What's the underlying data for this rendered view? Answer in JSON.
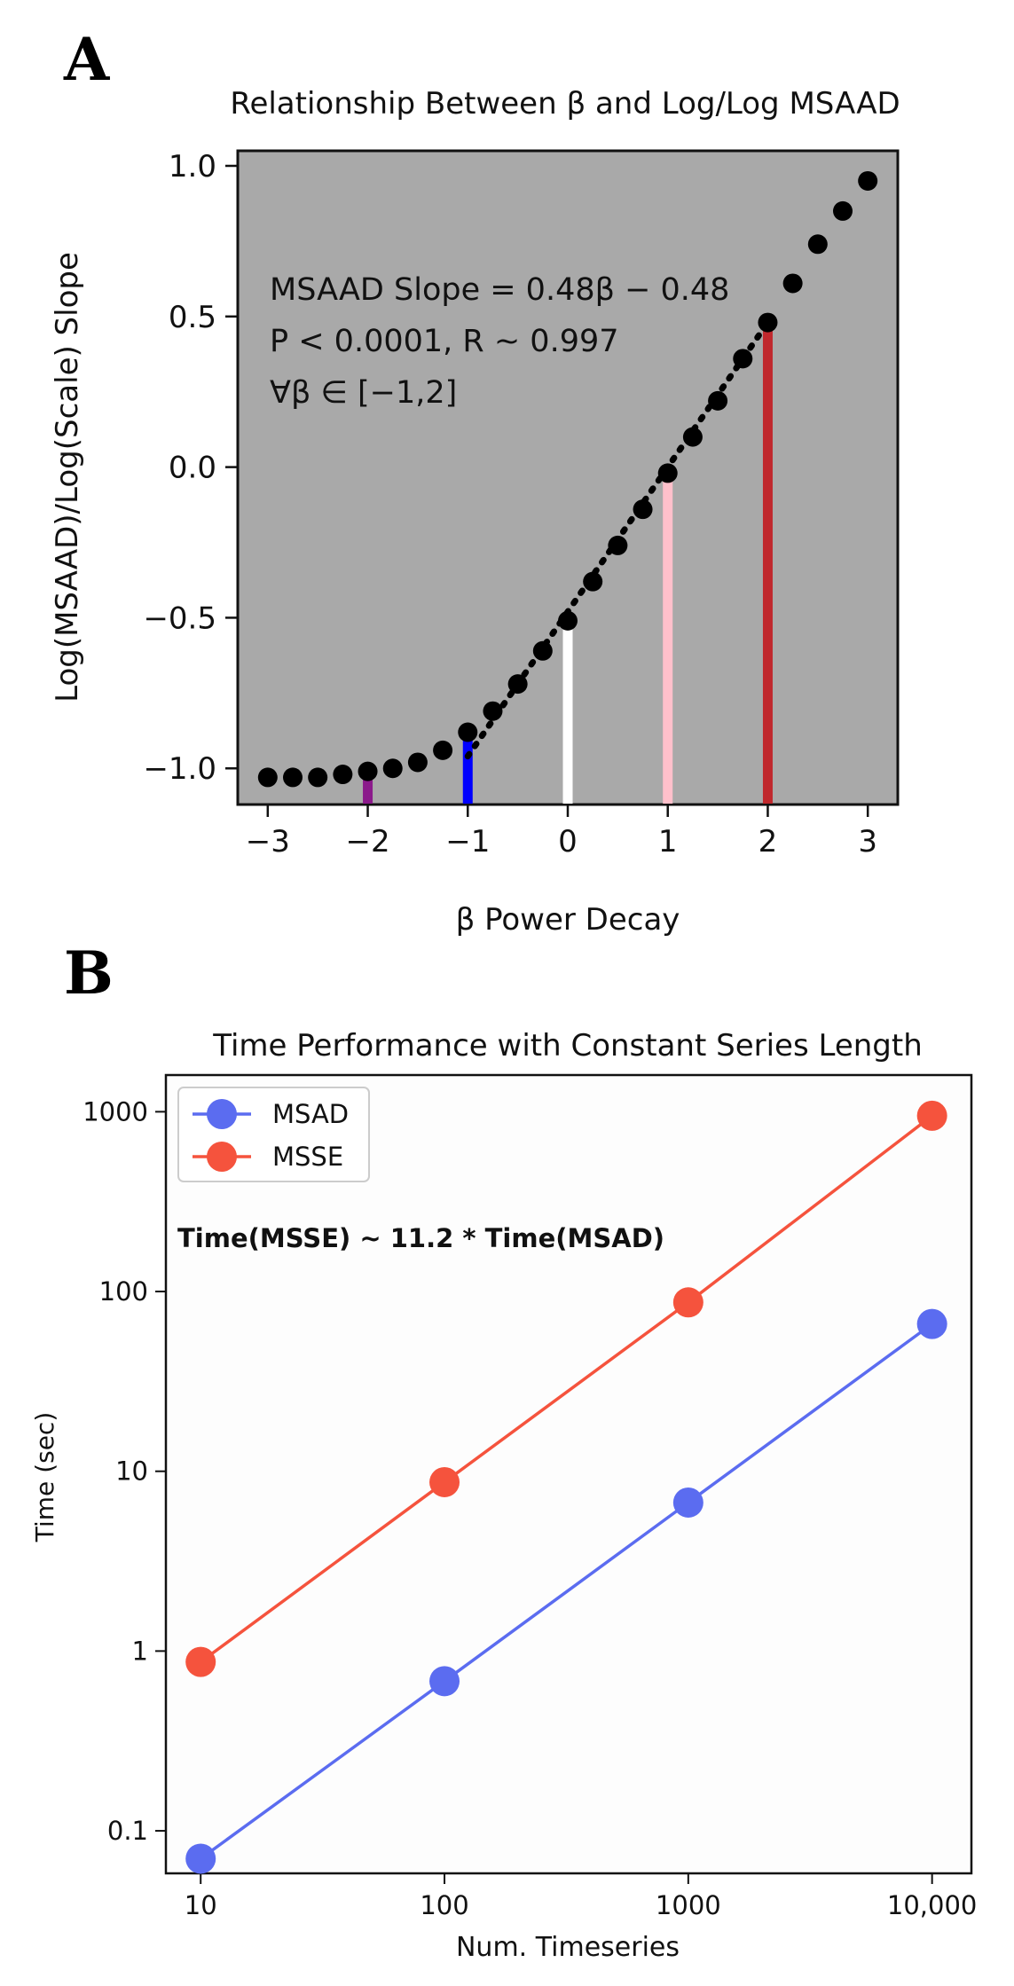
{
  "panels": {
    "a_label": "A",
    "b_label": "B"
  },
  "chart_data": [
    {
      "type": "scatter",
      "title": "Relationship Between β and Log/Log MSAAD",
      "xlabel": "β Power Decay",
      "ylabel": "Log(MSAAD)/Log(Scale) Slope",
      "xlim": [
        -3.3,
        3.3
      ],
      "ylim": [
        -1.12,
        1.05
      ],
      "xticks": [
        -3,
        -2,
        -1,
        0,
        1,
        2,
        3
      ],
      "xtick_labels": [
        "−3",
        "−2",
        "−1",
        "0",
        "1",
        "2",
        "3"
      ],
      "yticks": [
        1.0,
        0.5,
        0.0,
        -0.5,
        -1.0
      ],
      "ytick_labels": [
        "1.0",
        "0.5",
        "0.0",
        "−0.5",
        "−1.0"
      ],
      "background": "#a9a9a9",
      "annotations": [
        "MSAAD Slope = 0.48β − 0.48",
        "P < 0.0001, R ~ 0.997",
        "∀β ∈ [−1,2]"
      ],
      "points": {
        "x": [
          -3.0,
          -2.75,
          -2.5,
          -2.25,
          -2.0,
          -1.75,
          -1.5,
          -1.25,
          -1.0,
          -0.75,
          -0.5,
          -0.25,
          0.0,
          0.25,
          0.5,
          0.75,
          1.0,
          1.25,
          1.5,
          1.75,
          2.0,
          2.25,
          2.5,
          2.75,
          3.0
        ],
        "y": [
          -1.03,
          -1.03,
          -1.03,
          -1.02,
          -1.01,
          -1.0,
          -0.98,
          -0.94,
          -0.88,
          -0.81,
          -0.72,
          -0.61,
          -0.51,
          -0.38,
          -0.26,
          -0.14,
          -0.02,
          0.1,
          0.22,
          0.36,
          0.48,
          0.61,
          0.74,
          0.85,
          0.95
        ],
        "color": "#000000"
      },
      "fit_line": {
        "x": [
          -1,
          2
        ],
        "y": [
          -0.96,
          0.48
        ],
        "style": "dotted",
        "color": "#000000"
      },
      "stems": [
        {
          "x": -2,
          "y": -1.01,
          "color": "#8b1a8b"
        },
        {
          "x": -1,
          "y": -0.88,
          "color": "#0000ff"
        },
        {
          "x": 0,
          "y": -0.51,
          "color": "#ffffff"
        },
        {
          "x": 1,
          "y": -0.02,
          "color": "#ffc0cb"
        },
        {
          "x": 2,
          "y": 0.48,
          "color": "#c0282d"
        }
      ]
    },
    {
      "type": "line",
      "title": "Time Performance with Constant Series Length",
      "xlabel": "Num. Timeseries",
      "ylabel": "Time (sec)",
      "xscale": "log",
      "yscale": "log",
      "x": [
        10,
        100,
        1000,
        10000
      ],
      "xlim": [
        7.2,
        14500
      ],
      "ylim": [
        0.058,
        1600
      ],
      "xtick_labels": [
        "10",
        "100",
        "1000",
        "10,000"
      ],
      "yticks": [
        1000,
        100,
        10,
        1,
        0.1
      ],
      "ytick_labels": [
        "1000",
        "100",
        "10",
        "1",
        "0.1"
      ],
      "legend": "top-left",
      "annotation": "Time(MSSE) ~ 11.2 * Time(MSAD)",
      "series": [
        {
          "name": "MSAD",
          "color": "#5b6cf0",
          "values": [
            0.07,
            0.68,
            6.7,
            66
          ]
        },
        {
          "name": "MSSE",
          "color": "#f5533d",
          "values": [
            0.87,
            8.7,
            87,
            950
          ]
        }
      ]
    }
  ]
}
